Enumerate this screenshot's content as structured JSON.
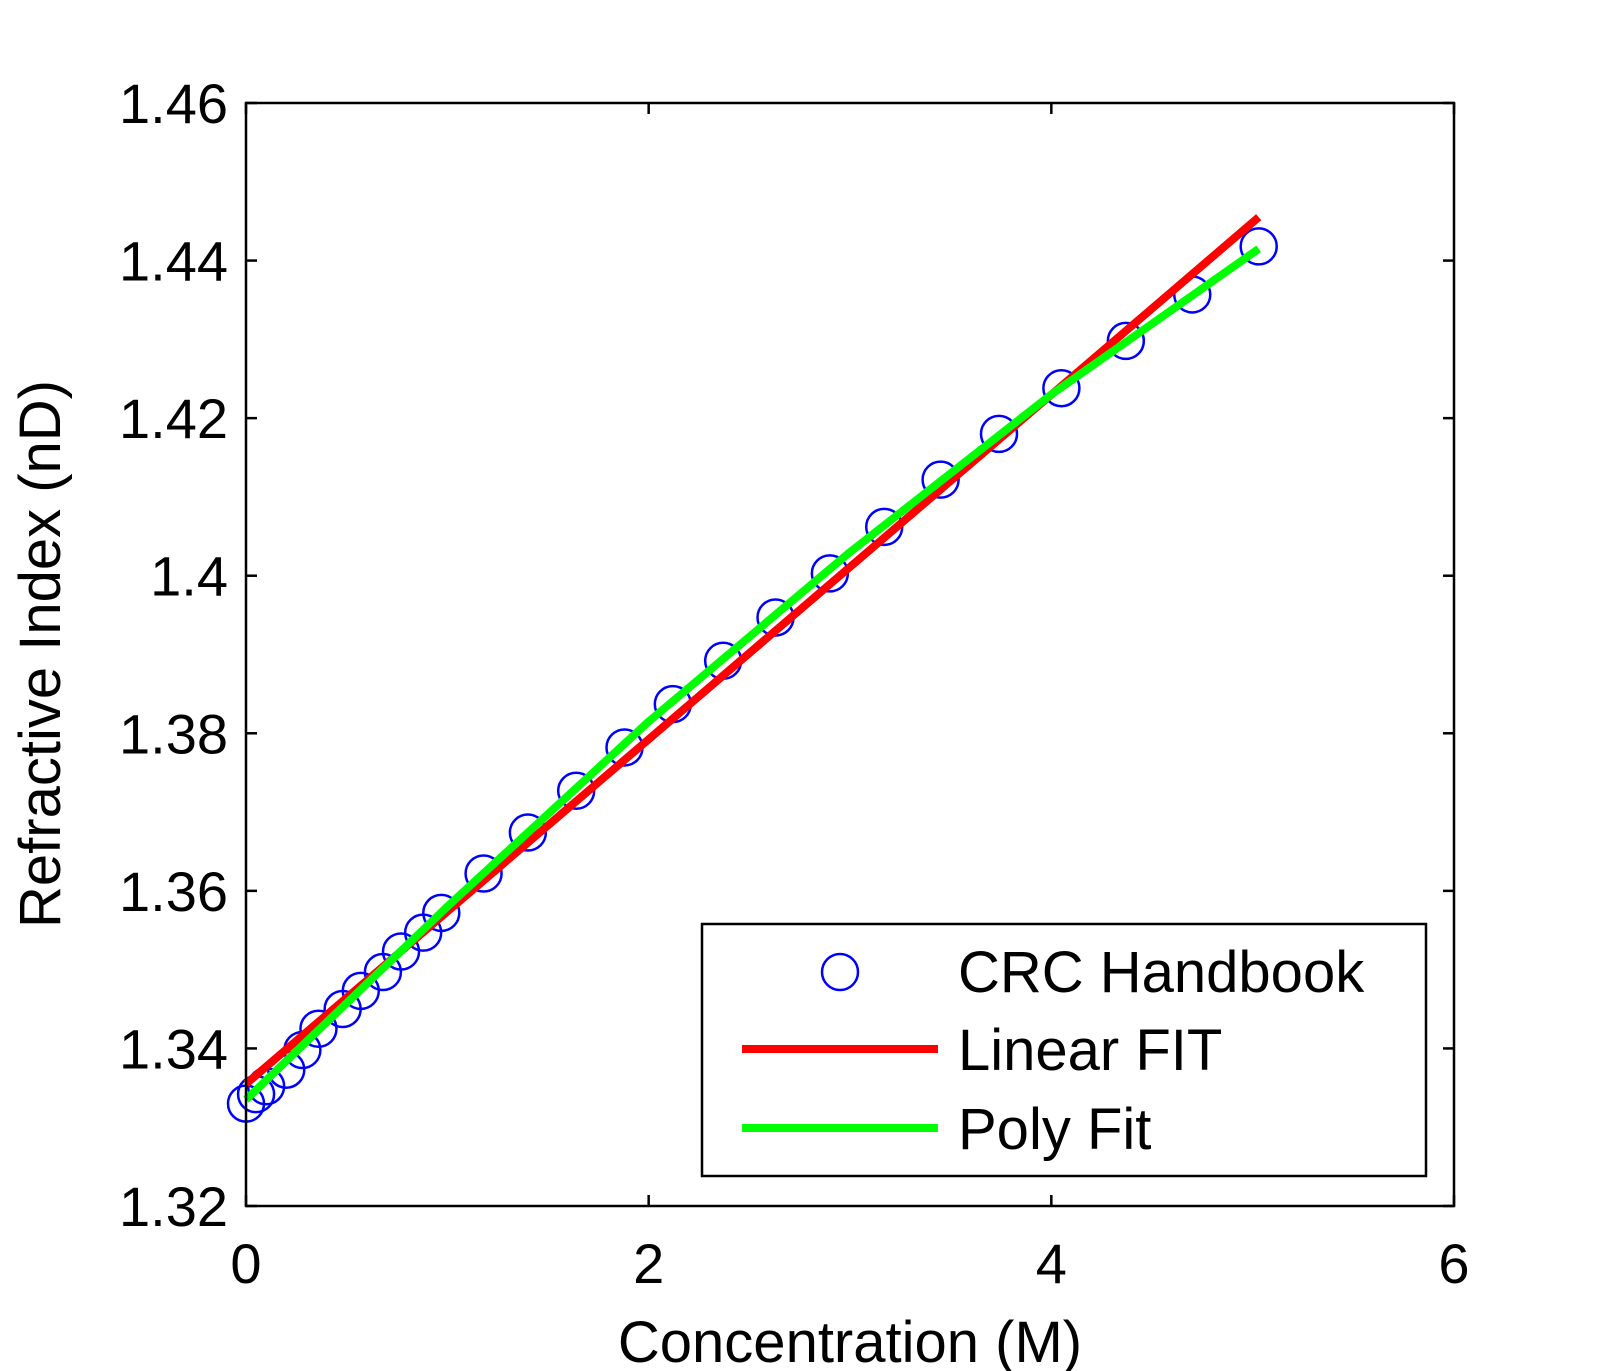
{
  "chart_data": {
    "type": "scatter",
    "title": "",
    "xlabel": "Concentration (M)",
    "ylabel": "Refractive Index (nD)",
    "xlim": [
      0,
      6
    ],
    "ylim": [
      1.32,
      1.46
    ],
    "xticks": [
      0,
      2,
      4,
      6
    ],
    "xtick_labels": [
      "0",
      "2",
      "4",
      "6"
    ],
    "yticks": [
      1.32,
      1.34,
      1.36,
      1.38,
      1.4,
      1.42,
      1.44,
      1.46
    ],
    "ytick_labels": [
      "1.32",
      "1.34",
      "1.36",
      "1.38",
      "1.4",
      "1.42",
      "1.44",
      "1.46"
    ],
    "grid": false,
    "legend_position": "bottom-right",
    "series": [
      {
        "name": "CRC Handbook",
        "style": "markers",
        "marker": "circle",
        "color": "#0000ff",
        "x": [
          0.0,
          0.05,
          0.1,
          0.2,
          0.28,
          0.36,
          0.48,
          0.57,
          0.68,
          0.77,
          0.88,
          0.97,
          1.18,
          1.4,
          1.64,
          1.88,
          2.12,
          2.37,
          2.63,
          2.9,
          3.17,
          3.45,
          3.74,
          4.05,
          4.37,
          4.7,
          5.03
        ],
        "y": [
          1.333,
          1.3342,
          1.3352,
          1.3373,
          1.3398,
          1.3425,
          1.345,
          1.3473,
          1.3497,
          1.3523,
          1.3547,
          1.3572,
          1.3622,
          1.3674,
          1.3727,
          1.3782,
          1.3837,
          1.3892,
          1.3947,
          1.4003,
          1.4062,
          1.4122,
          1.418,
          1.4238,
          1.4298,
          1.4357,
          1.4418
        ]
      },
      {
        "name": "Linear FIT",
        "style": "line",
        "color": "#ff0000",
        "x": [
          0.0,
          5.03
        ],
        "y": [
          1.3355,
          1.4455
        ]
      },
      {
        "name": "Poly Fit",
        "style": "line",
        "color": "#00ff00",
        "x": [
          0.0,
          1.0,
          2.0,
          3.0,
          4.0,
          5.03
        ],
        "y": [
          1.3335,
          1.358,
          1.3815,
          1.403,
          1.423,
          1.4415
        ]
      }
    ]
  }
}
